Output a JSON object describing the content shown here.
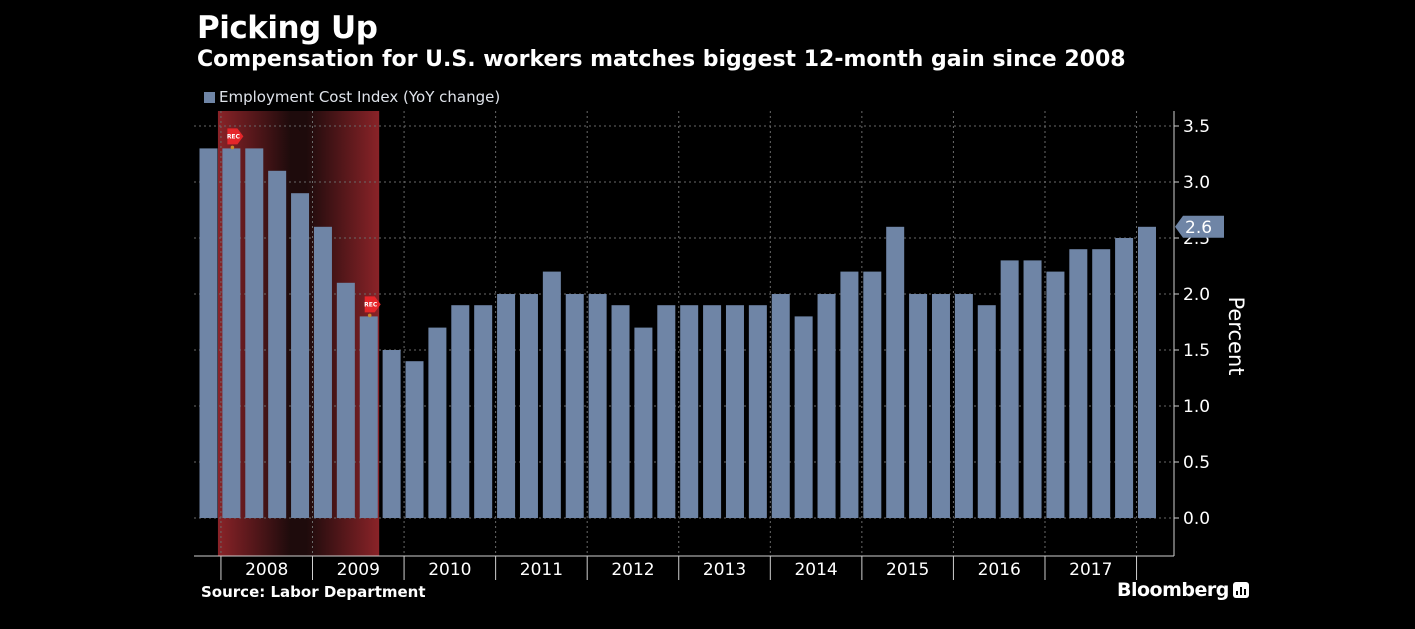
{
  "colors": {
    "bar": "#6f85a6",
    "recession": "#7a2125",
    "grid": "#6a6a6a",
    "marker": "#e5262a",
    "axis": "#d0d0d0"
  },
  "chart_data": {
    "type": "bar",
    "title": "Picking Up",
    "subtitle": "Compensation for U.S. workers matches biggest 12-month gain since 2008",
    "legend": [
      "Employment Cost Index (YoY change)"
    ],
    "ylabel": "Percent",
    "ylim": [
      -0.3,
      3.65
    ],
    "yticks": [
      "0.0",
      "0.5",
      "1.0",
      "1.5",
      "2.0",
      "2.5",
      "3.0",
      "3.5"
    ],
    "x_ticks": [
      "2008",
      "2009",
      "2010",
      "2011",
      "2012",
      "2013",
      "2014",
      "2015",
      "2016",
      "2017"
    ],
    "series": [
      {
        "name": "Employment Cost Index (YoY change)",
        "values": [
          3.3,
          3.3,
          3.3,
          3.1,
          2.9,
          2.6,
          2.1,
          1.8,
          1.5,
          1.4,
          1.7,
          1.9,
          1.9,
          2.0,
          2.0,
          2.2,
          2.0,
          2.0,
          1.9,
          1.7,
          1.9,
          1.9,
          1.9,
          1.9,
          1.9,
          2.0,
          1.8,
          2.0,
          2.2,
          2.2,
          2.6,
          2.0,
          2.0,
          2.0,
          1.9,
          2.3,
          2.3,
          2.2,
          2.4,
          2.4,
          2.5,
          2.6
        ]
      }
    ],
    "recession": {
      "label": "REC",
      "start_index": 1,
      "end_index": 7
    },
    "last_value_label": "2.6",
    "legend_position": "top-left"
  },
  "footer": {
    "source": "Source: Labor Department",
    "brand": "Bloomberg"
  }
}
